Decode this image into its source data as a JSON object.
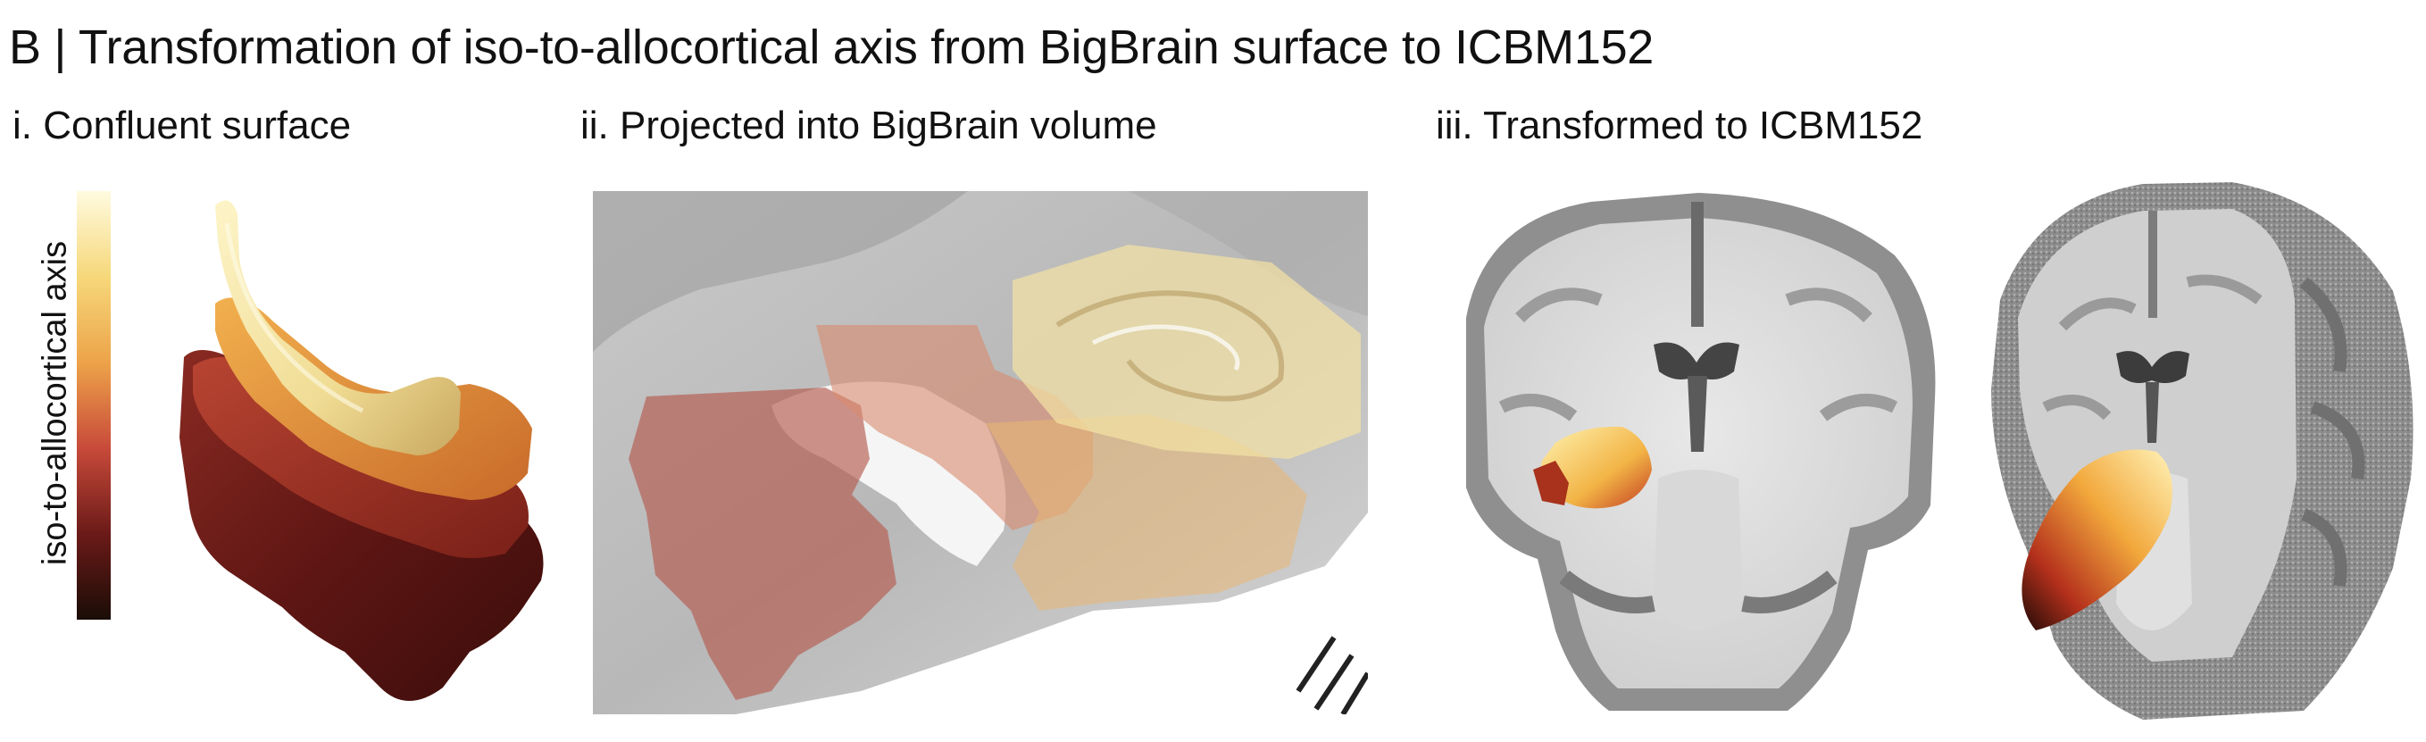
{
  "figure": {
    "title": "B | Transformation of iso-to-allocortical axis from BigBrain surface to ICBM152",
    "panels": [
      {
        "label": "i. Confluent surface"
      },
      {
        "label": "ii. Projected into BigBrain volume"
      },
      {
        "label": "iii. Transformed to ICBM152"
      }
    ],
    "colorbar": {
      "label": "iso-to-allocortical axis",
      "colors": [
        "#fffbe0",
        "#f6d87a",
        "#eda349",
        "#c84a3a",
        "#6b1a18",
        "#1a0d06"
      ]
    }
  }
}
